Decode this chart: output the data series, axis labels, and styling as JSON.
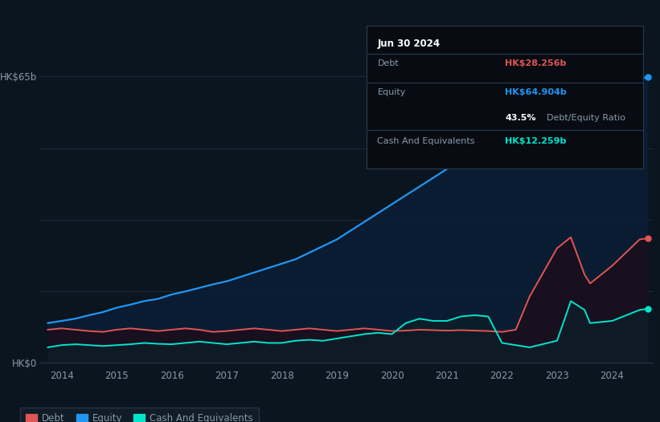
{
  "bg_color": "#0b1520",
  "plot_bg_color": "#0b1520",
  "equity_color": "#2196f3",
  "debt_color": "#e05555",
  "cash_color": "#00e5cc",
  "grid_color": "#1a2a3a",
  "text_color": "#8899aa",
  "ylabel_text": "HK$65b",
  "ylabel_zero": "HK$0",
  "xlim_start": 2013.6,
  "xlim_end": 2024.75,
  "ylim_min": -1,
  "ylim_max": 68,
  "tooltip": {
    "date": "Jun 30 2024",
    "debt_label": "Debt",
    "debt_value": "HK$28.256b",
    "equity_label": "Equity",
    "equity_value": "HK$64.904b",
    "ratio_value": "43.5%",
    "ratio_label": "Debt/Equity Ratio",
    "cash_label": "Cash And Equivalents",
    "cash_value": "HK$12.259b"
  },
  "legend": [
    {
      "label": "Debt",
      "color": "#e05555"
    },
    {
      "label": "Equity",
      "color": "#2196f3"
    },
    {
      "label": "Cash And Equivalents",
      "color": "#00e5cc"
    }
  ],
  "years": [
    2013.75,
    2014.0,
    2014.25,
    2014.5,
    2014.75,
    2015.0,
    2015.25,
    2015.5,
    2015.75,
    2016.0,
    2016.25,
    2016.5,
    2016.75,
    2017.0,
    2017.25,
    2017.5,
    2017.75,
    2018.0,
    2018.25,
    2018.5,
    2018.75,
    2019.0,
    2019.25,
    2019.5,
    2019.75,
    2020.0,
    2020.25,
    2020.5,
    2020.75,
    2021.0,
    2021.25,
    2021.5,
    2021.75,
    2022.0,
    2022.25,
    2022.5,
    2023.0,
    2023.25,
    2023.5,
    2023.6,
    2024.0,
    2024.5,
    2024.65
  ],
  "equity": [
    9.0,
    9.5,
    10.0,
    10.8,
    11.5,
    12.5,
    13.2,
    14.0,
    14.5,
    15.5,
    16.2,
    17.0,
    17.8,
    18.5,
    19.5,
    20.5,
    21.5,
    22.5,
    23.5,
    25.0,
    26.5,
    28.0,
    30.0,
    32.0,
    34.0,
    36.0,
    38.0,
    40.0,
    42.0,
    44.0,
    46.0,
    48.0,
    50.0,
    50.5,
    51.0,
    52.0,
    55.0,
    58.0,
    61.0,
    62.0,
    63.0,
    64.5,
    64.9
  ],
  "debt": [
    7.5,
    7.8,
    7.5,
    7.2,
    7.0,
    7.5,
    7.8,
    7.5,
    7.2,
    7.5,
    7.8,
    7.5,
    7.0,
    7.2,
    7.5,
    7.8,
    7.5,
    7.2,
    7.5,
    7.8,
    7.5,
    7.2,
    7.5,
    7.8,
    7.5,
    7.2,
    7.3,
    7.5,
    7.4,
    7.3,
    7.4,
    7.3,
    7.2,
    7.0,
    7.5,
    15.0,
    26.0,
    28.5,
    20.0,
    18.0,
    22.0,
    28.0,
    28.256
  ],
  "cash": [
    3.5,
    4.0,
    4.2,
    4.0,
    3.8,
    4.0,
    4.2,
    4.5,
    4.3,
    4.2,
    4.5,
    4.8,
    4.5,
    4.2,
    4.5,
    4.8,
    4.5,
    4.5,
    5.0,
    5.2,
    5.0,
    5.5,
    6.0,
    6.5,
    6.8,
    6.5,
    9.0,
    10.0,
    9.5,
    9.5,
    10.5,
    10.8,
    10.5,
    4.5,
    4.0,
    3.5,
    5.0,
    14.0,
    12.0,
    9.0,
    9.5,
    12.0,
    12.259
  ]
}
